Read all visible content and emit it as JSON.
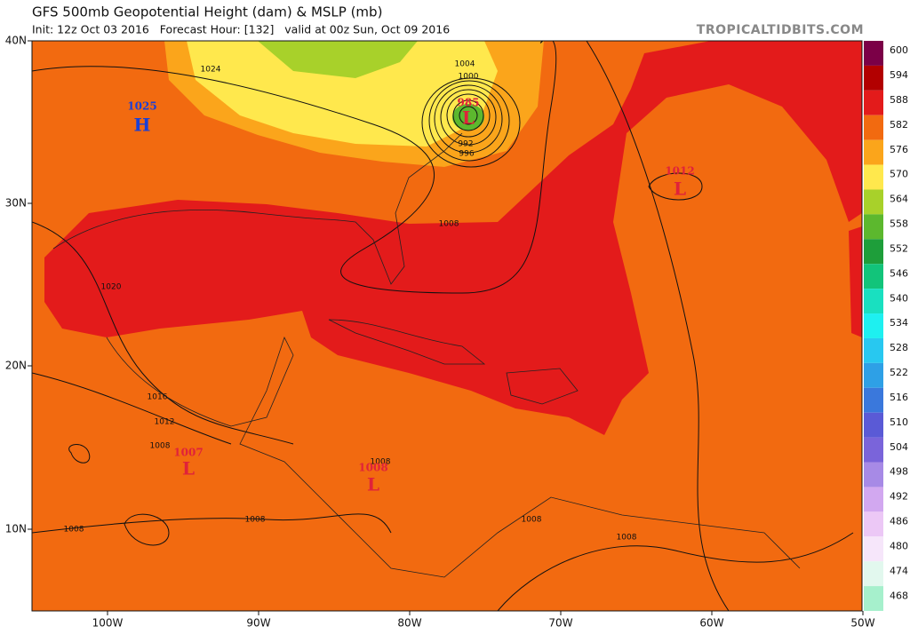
{
  "header": {
    "title": "GFS 500mb Geopotential Height (dam) & MSLP (mb)",
    "subtitle": "Init: 12z Oct 03 2016   Forecast Hour: [132]   valid at 00z Sun, Oct 09 2016",
    "credit": "TROPICALTIDBITS.COM"
  },
  "map": {
    "lat_labels": [
      "40N",
      "30N",
      "20N",
      "10N"
    ],
    "lon_labels": [
      "100W",
      "90W",
      "80W",
      "70W",
      "60W",
      "50W"
    ],
    "pressure_centers": [
      {
        "symbol": "H",
        "value": "1025"
      },
      {
        "symbol": "L",
        "value": "985"
      },
      {
        "symbol": "L",
        "value": "1012"
      },
      {
        "symbol": "L",
        "value": "1007"
      },
      {
        "symbol": "L",
        "value": "1008"
      }
    ],
    "contour_labels": [
      "1024",
      "1004",
      "1000",
      "992",
      "996",
      "1008",
      "1020",
      "1016",
      "1012",
      "1008",
      "1008",
      "1008",
      "1008",
      "1008",
      "1008"
    ]
  },
  "colorbar": {
    "levels": [
      {
        "label": "600",
        "color": "#7b0047"
      },
      {
        "label": "594",
        "color": "#b20000"
      },
      {
        "label": "588",
        "color": "#e31b1b"
      },
      {
        "label": "582",
        "color": "#f26a10"
      },
      {
        "label": "576",
        "color": "#fba51b"
      },
      {
        "label": "570",
        "color": "#ffe84d"
      },
      {
        "label": "564",
        "color": "#a8d12a"
      },
      {
        "label": "558",
        "color": "#5cb82e"
      },
      {
        "label": "552",
        "color": "#1e9e3a"
      },
      {
        "label": "546",
        "color": "#12c47a"
      },
      {
        "label": "540",
        "color": "#19e0c0"
      },
      {
        "label": "534",
        "color": "#1ef0f0"
      },
      {
        "label": "528",
        "color": "#28c8f0"
      },
      {
        "label": "522",
        "color": "#2ea0e6"
      },
      {
        "label": "516",
        "color": "#3a78dc"
      },
      {
        "label": "510",
        "color": "#5a5ad6"
      },
      {
        "label": "504",
        "color": "#7a64da"
      },
      {
        "label": "498",
        "color": "#a78ae6"
      },
      {
        "label": "492",
        "color": "#d2a8f0"
      },
      {
        "label": "486",
        "color": "#ecc8f6"
      },
      {
        "label": "480",
        "color": "#f6e6fa"
      },
      {
        "label": "474",
        "color": "#e2f8ee"
      },
      {
        "label": "468",
        "color": "#a6f0cc"
      }
    ]
  }
}
